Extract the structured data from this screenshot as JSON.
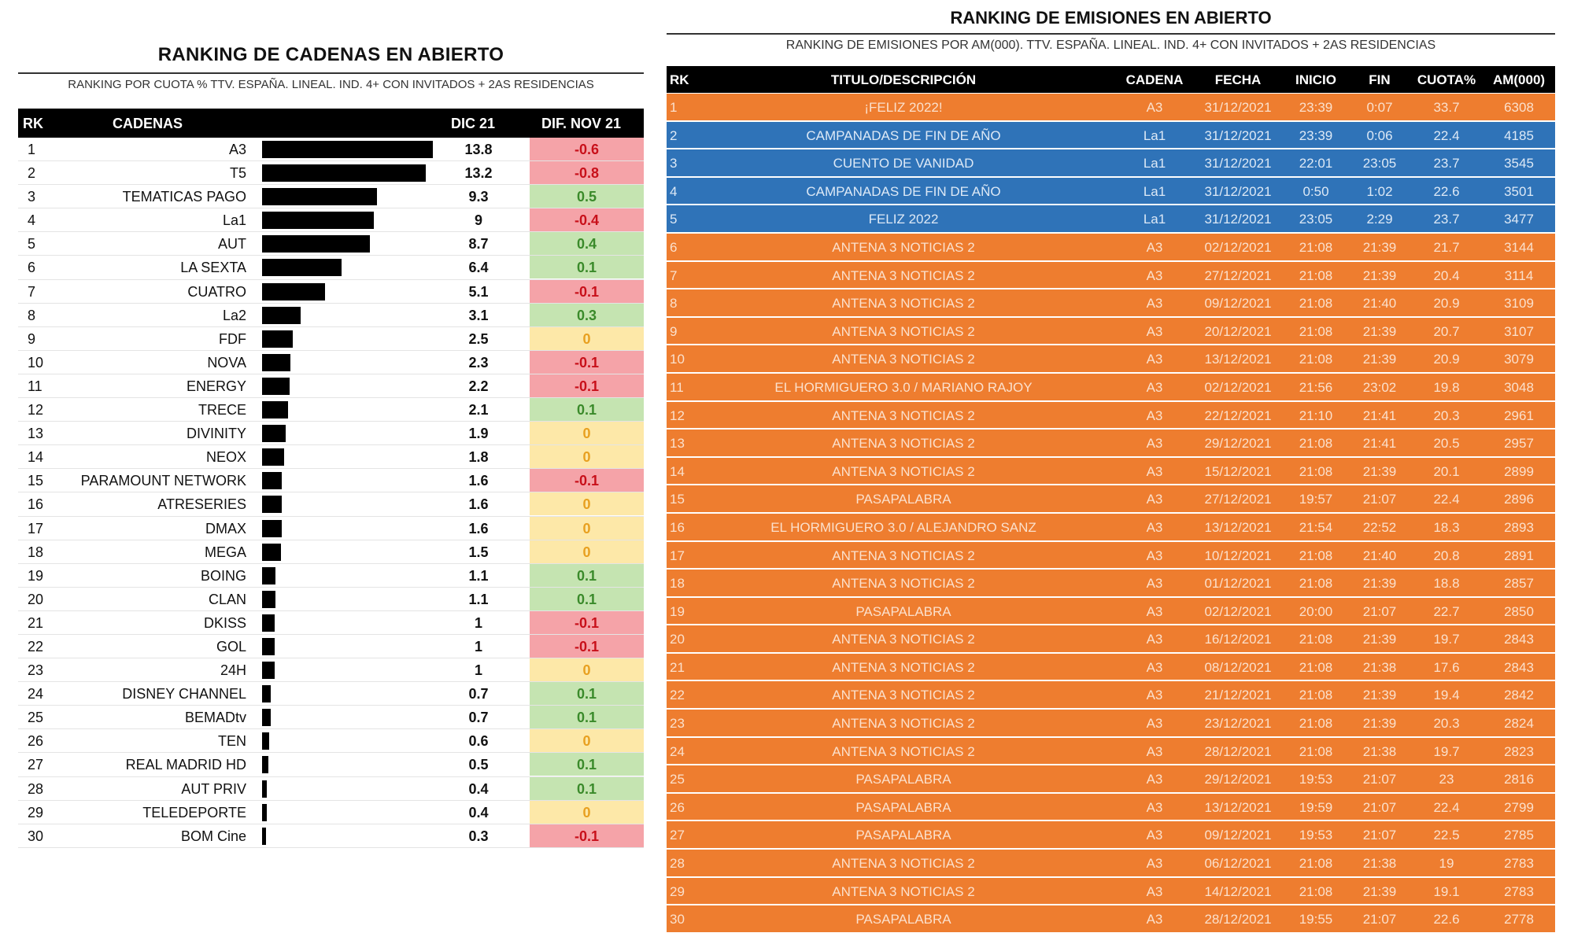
{
  "left": {
    "title": "RANKING DE CADENAS EN ABIERTO",
    "subtitle": "RANKING POR CUOTA % TTV. ESPAÑA. LINEAL. IND. 4+ CON INVITADOS + 2AS RESIDENCIAS",
    "headers": {
      "rk": "RK",
      "cadenas": "CADENAS",
      "dic": "DIC 21",
      "dif": "DIF. NOV 21"
    },
    "rows": [
      {
        "rk": "1",
        "name": "A3",
        "value": 13.8,
        "dif": "-0.6"
      },
      {
        "rk": "2",
        "name": "T5",
        "value": 13.2,
        "dif": "-0.8"
      },
      {
        "rk": "3",
        "name": "TEMATICAS PAGO",
        "value": 9.3,
        "dif": "0.5"
      },
      {
        "rk": "4",
        "name": "La1",
        "value": 9,
        "dif": "-0.4"
      },
      {
        "rk": "5",
        "name": "AUT",
        "value": 8.7,
        "dif": "0.4"
      },
      {
        "rk": "6",
        "name": "LA SEXTA",
        "value": 6.4,
        "dif": "0.1"
      },
      {
        "rk": "7",
        "name": "CUATRO",
        "value": 5.1,
        "dif": "-0.1"
      },
      {
        "rk": "8",
        "name": "La2",
        "value": 3.1,
        "dif": "0.3"
      },
      {
        "rk": "9",
        "name": "FDF",
        "value": 2.5,
        "dif": "0"
      },
      {
        "rk": "10",
        "name": "NOVA",
        "value": 2.3,
        "dif": "-0.1"
      },
      {
        "rk": "11",
        "name": "ENERGY",
        "value": 2.2,
        "dif": "-0.1"
      },
      {
        "rk": "12",
        "name": "TRECE",
        "value": 2.1,
        "dif": "0.1"
      },
      {
        "rk": "13",
        "name": "DIVINITY",
        "value": 1.9,
        "dif": "0"
      },
      {
        "rk": "14",
        "name": "NEOX",
        "value": 1.8,
        "dif": "0"
      },
      {
        "rk": "15",
        "name": "PARAMOUNT NETWORK",
        "value": 1.6,
        "dif": "-0.1"
      },
      {
        "rk": "16",
        "name": "ATRESERIES",
        "value": 1.6,
        "dif": "0"
      },
      {
        "rk": "17",
        "name": "DMAX",
        "value": 1.6,
        "dif": "0"
      },
      {
        "rk": "18",
        "name": "MEGA",
        "value": 1.5,
        "dif": "0"
      },
      {
        "rk": "19",
        "name": "BOING",
        "value": 1.1,
        "dif": "0.1"
      },
      {
        "rk": "20",
        "name": "CLAN",
        "value": 1.1,
        "dif": "0.1"
      },
      {
        "rk": "21",
        "name": "DKISS",
        "value": 1,
        "dif": "-0.1"
      },
      {
        "rk": "22",
        "name": "GOL",
        "value": 1,
        "dif": "-0.1"
      },
      {
        "rk": "23",
        "name": "24H",
        "value": 1,
        "dif": "0"
      },
      {
        "rk": "24",
        "name": "DISNEY CHANNEL",
        "value": 0.7,
        "dif": "0.1"
      },
      {
        "rk": "25",
        "name": "BEMADtv",
        "value": 0.7,
        "dif": "0.1"
      },
      {
        "rk": "26",
        "name": "TEN",
        "value": 0.6,
        "dif": "0"
      },
      {
        "rk": "27",
        "name": "REAL MADRID HD",
        "value": 0.5,
        "dif": "0.1"
      },
      {
        "rk": "28",
        "name": "AUT PRIV",
        "value": 0.4,
        "dif": "0.1"
      },
      {
        "rk": "29",
        "name": "TELEDEPORTE",
        "value": 0.4,
        "dif": "0"
      },
      {
        "rk": "30",
        "name": "BOM Cine",
        "value": 0.3,
        "dif": "-0.1"
      }
    ]
  },
  "right": {
    "title": "RANKING DE EMISIONES EN ABIERTO",
    "subtitle": "RANKING DE EMISIONES POR AM(000). TTV. ESPAÑA. LINEAL. IND. 4+ CON INVITADOS + 2AS RESIDENCIAS",
    "headers": [
      "RK",
      "TITULO/DESCRIPCIÓN",
      "CADENA",
      "FECHA",
      "INICIO",
      "FIN",
      "CUOTA%",
      "AM(000)"
    ],
    "colors": {
      "A3": "#ee7d2f",
      "La1": "#2f73b8"
    },
    "rows": [
      [
        "1",
        "¡FELIZ 2022!",
        "A3",
        "31/12/2021",
        "23:39",
        "0:07",
        "33.7",
        "6308"
      ],
      [
        "2",
        "CAMPANADAS DE FIN DE AÑO",
        "La1",
        "31/12/2021",
        "23:39",
        "0:06",
        "22.4",
        "4185"
      ],
      [
        "3",
        "CUENTO DE VANIDAD",
        "La1",
        "31/12/2021",
        "22:01",
        "23:05",
        "23.7",
        "3545"
      ],
      [
        "4",
        "CAMPANADAS DE FIN DE AÑO",
        "La1",
        "31/12/2021",
        "0:50",
        "1:02",
        "22.6",
        "3501"
      ],
      [
        "5",
        "FELIZ 2022",
        "La1",
        "31/12/2021",
        "23:05",
        "2:29",
        "23.7",
        "3477"
      ],
      [
        "6",
        "ANTENA 3 NOTICIAS 2",
        "A3",
        "02/12/2021",
        "21:08",
        "21:39",
        "21.7",
        "3144"
      ],
      [
        "7",
        "ANTENA 3 NOTICIAS 2",
        "A3",
        "27/12/2021",
        "21:08",
        "21:39",
        "20.4",
        "3114"
      ],
      [
        "8",
        "ANTENA 3 NOTICIAS 2",
        "A3",
        "09/12/2021",
        "21:08",
        "21:40",
        "20.9",
        "3109"
      ],
      [
        "9",
        "ANTENA 3 NOTICIAS 2",
        "A3",
        "20/12/2021",
        "21:08",
        "21:39",
        "20.7",
        "3107"
      ],
      [
        "10",
        "ANTENA 3 NOTICIAS 2",
        "A3",
        "13/12/2021",
        "21:08",
        "21:39",
        "20.9",
        "3079"
      ],
      [
        "11",
        "EL HORMIGUERO 3.0 / MARIANO RAJOY",
        "A3",
        "02/12/2021",
        "21:56",
        "23:02",
        "19.8",
        "3048"
      ],
      [
        "12",
        "ANTENA 3 NOTICIAS 2",
        "A3",
        "22/12/2021",
        "21:10",
        "21:41",
        "20.3",
        "2961"
      ],
      [
        "13",
        "ANTENA 3 NOTICIAS 2",
        "A3",
        "29/12/2021",
        "21:08",
        "21:41",
        "20.5",
        "2957"
      ],
      [
        "14",
        "ANTENA 3 NOTICIAS 2",
        "A3",
        "15/12/2021",
        "21:08",
        "21:39",
        "20.1",
        "2899"
      ],
      [
        "15",
        "PASAPALABRA",
        "A3",
        "27/12/2021",
        "19:57",
        "21:07",
        "22.4",
        "2896"
      ],
      [
        "16",
        "EL HORMIGUERO 3.0 / ALEJANDRO SANZ",
        "A3",
        "13/12/2021",
        "21:54",
        "22:52",
        "18.3",
        "2893"
      ],
      [
        "17",
        "ANTENA 3 NOTICIAS 2",
        "A3",
        "10/12/2021",
        "21:08",
        "21:40",
        "20.8",
        "2891"
      ],
      [
        "18",
        "ANTENA 3 NOTICIAS 2",
        "A3",
        "01/12/2021",
        "21:08",
        "21:39",
        "18.8",
        "2857"
      ],
      [
        "19",
        "PASAPALABRA",
        "A3",
        "02/12/2021",
        "20:00",
        "21:07",
        "22.7",
        "2850"
      ],
      [
        "20",
        "ANTENA 3 NOTICIAS 2",
        "A3",
        "16/12/2021",
        "21:08",
        "21:39",
        "19.7",
        "2843"
      ],
      [
        "21",
        "ANTENA 3 NOTICIAS 2",
        "A3",
        "08/12/2021",
        "21:08",
        "21:38",
        "17.6",
        "2843"
      ],
      [
        "22",
        "ANTENA 3 NOTICIAS 2",
        "A3",
        "21/12/2021",
        "21:08",
        "21:39",
        "19.4",
        "2842"
      ],
      [
        "23",
        "ANTENA 3 NOTICIAS 2",
        "A3",
        "23/12/2021",
        "21:08",
        "21:39",
        "20.3",
        "2824"
      ],
      [
        "24",
        "ANTENA 3 NOTICIAS 2",
        "A3",
        "28/12/2021",
        "21:08",
        "21:38",
        "19.7",
        "2823"
      ],
      [
        "25",
        "PASAPALABRA",
        "A3",
        "29/12/2021",
        "19:53",
        "21:07",
        "23",
        "2816"
      ],
      [
        "26",
        "PASAPALABRA",
        "A3",
        "13/12/2021",
        "19:59",
        "21:07",
        "22.4",
        "2799"
      ],
      [
        "27",
        "PASAPALABRA",
        "A3",
        "09/12/2021",
        "19:53",
        "21:07",
        "22.5",
        "2785"
      ],
      [
        "28",
        "ANTENA 3 NOTICIAS 2",
        "A3",
        "06/12/2021",
        "21:08",
        "21:38",
        "19",
        "2783"
      ],
      [
        "29",
        "ANTENA 3 NOTICIAS 2",
        "A3",
        "14/12/2021",
        "21:08",
        "21:39",
        "19.1",
        "2783"
      ],
      [
        "30",
        "PASAPALABRA",
        "A3",
        "28/12/2021",
        "19:55",
        "21:07",
        "22.6",
        "2778"
      ]
    ]
  }
}
